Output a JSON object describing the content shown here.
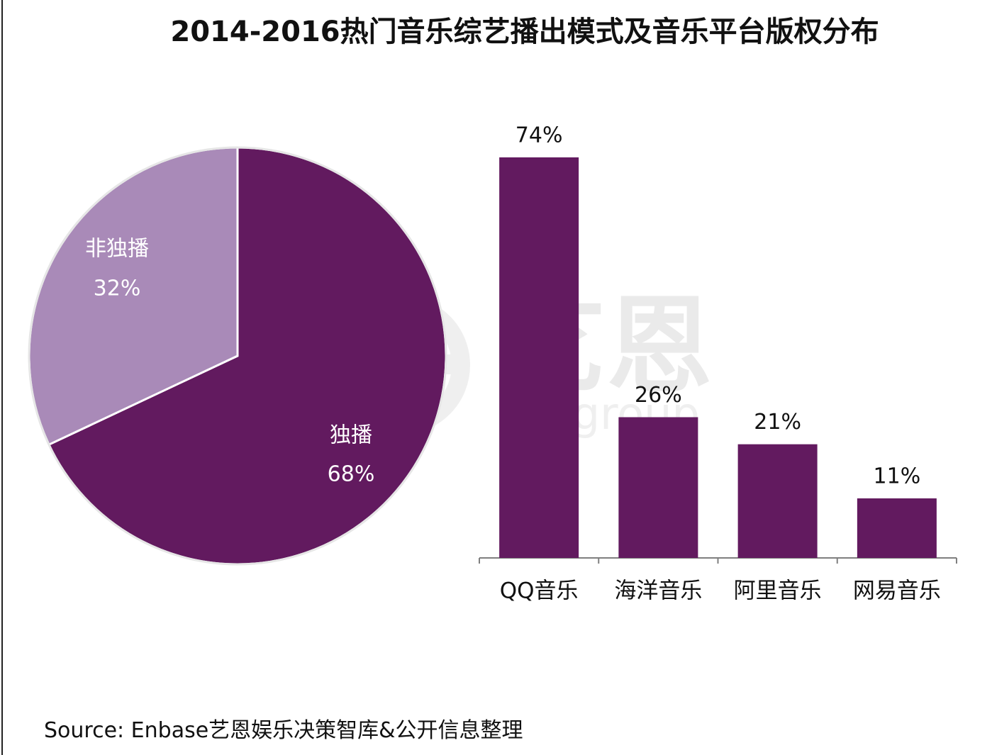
{
  "title": "2014-2016热门音乐综艺播出模式及音乐平台版权分布",
  "source": "Source: Enbase艺恩娱乐决策智库&公开信息整理",
  "watermark": {
    "text": "艺恩",
    "subtext": "entgroup"
  },
  "colors": {
    "dark": "#621a5f",
    "light": "#a98ab8",
    "axis": "#7f7f7f"
  },
  "chart_data": [
    {
      "type": "pie",
      "title": "",
      "slices": [
        {
          "label": "独播",
          "value": 68,
          "display": "68%",
          "color": "#621a5f"
        },
        {
          "label": "非独播",
          "value": 32,
          "display": "32%",
          "color": "#a98ab8"
        }
      ],
      "legend": "none"
    },
    {
      "type": "bar",
      "title": "",
      "categories": [
        "QQ音乐",
        "海洋音乐",
        "阿里音乐",
        "网易音乐"
      ],
      "values": [
        74,
        26,
        21,
        11
      ],
      "labels": [
        "74%",
        "26%",
        "21%",
        "11%"
      ],
      "ylim": [
        0,
        74
      ],
      "grid": false,
      "legend": "none",
      "color": "#621a5f"
    }
  ]
}
